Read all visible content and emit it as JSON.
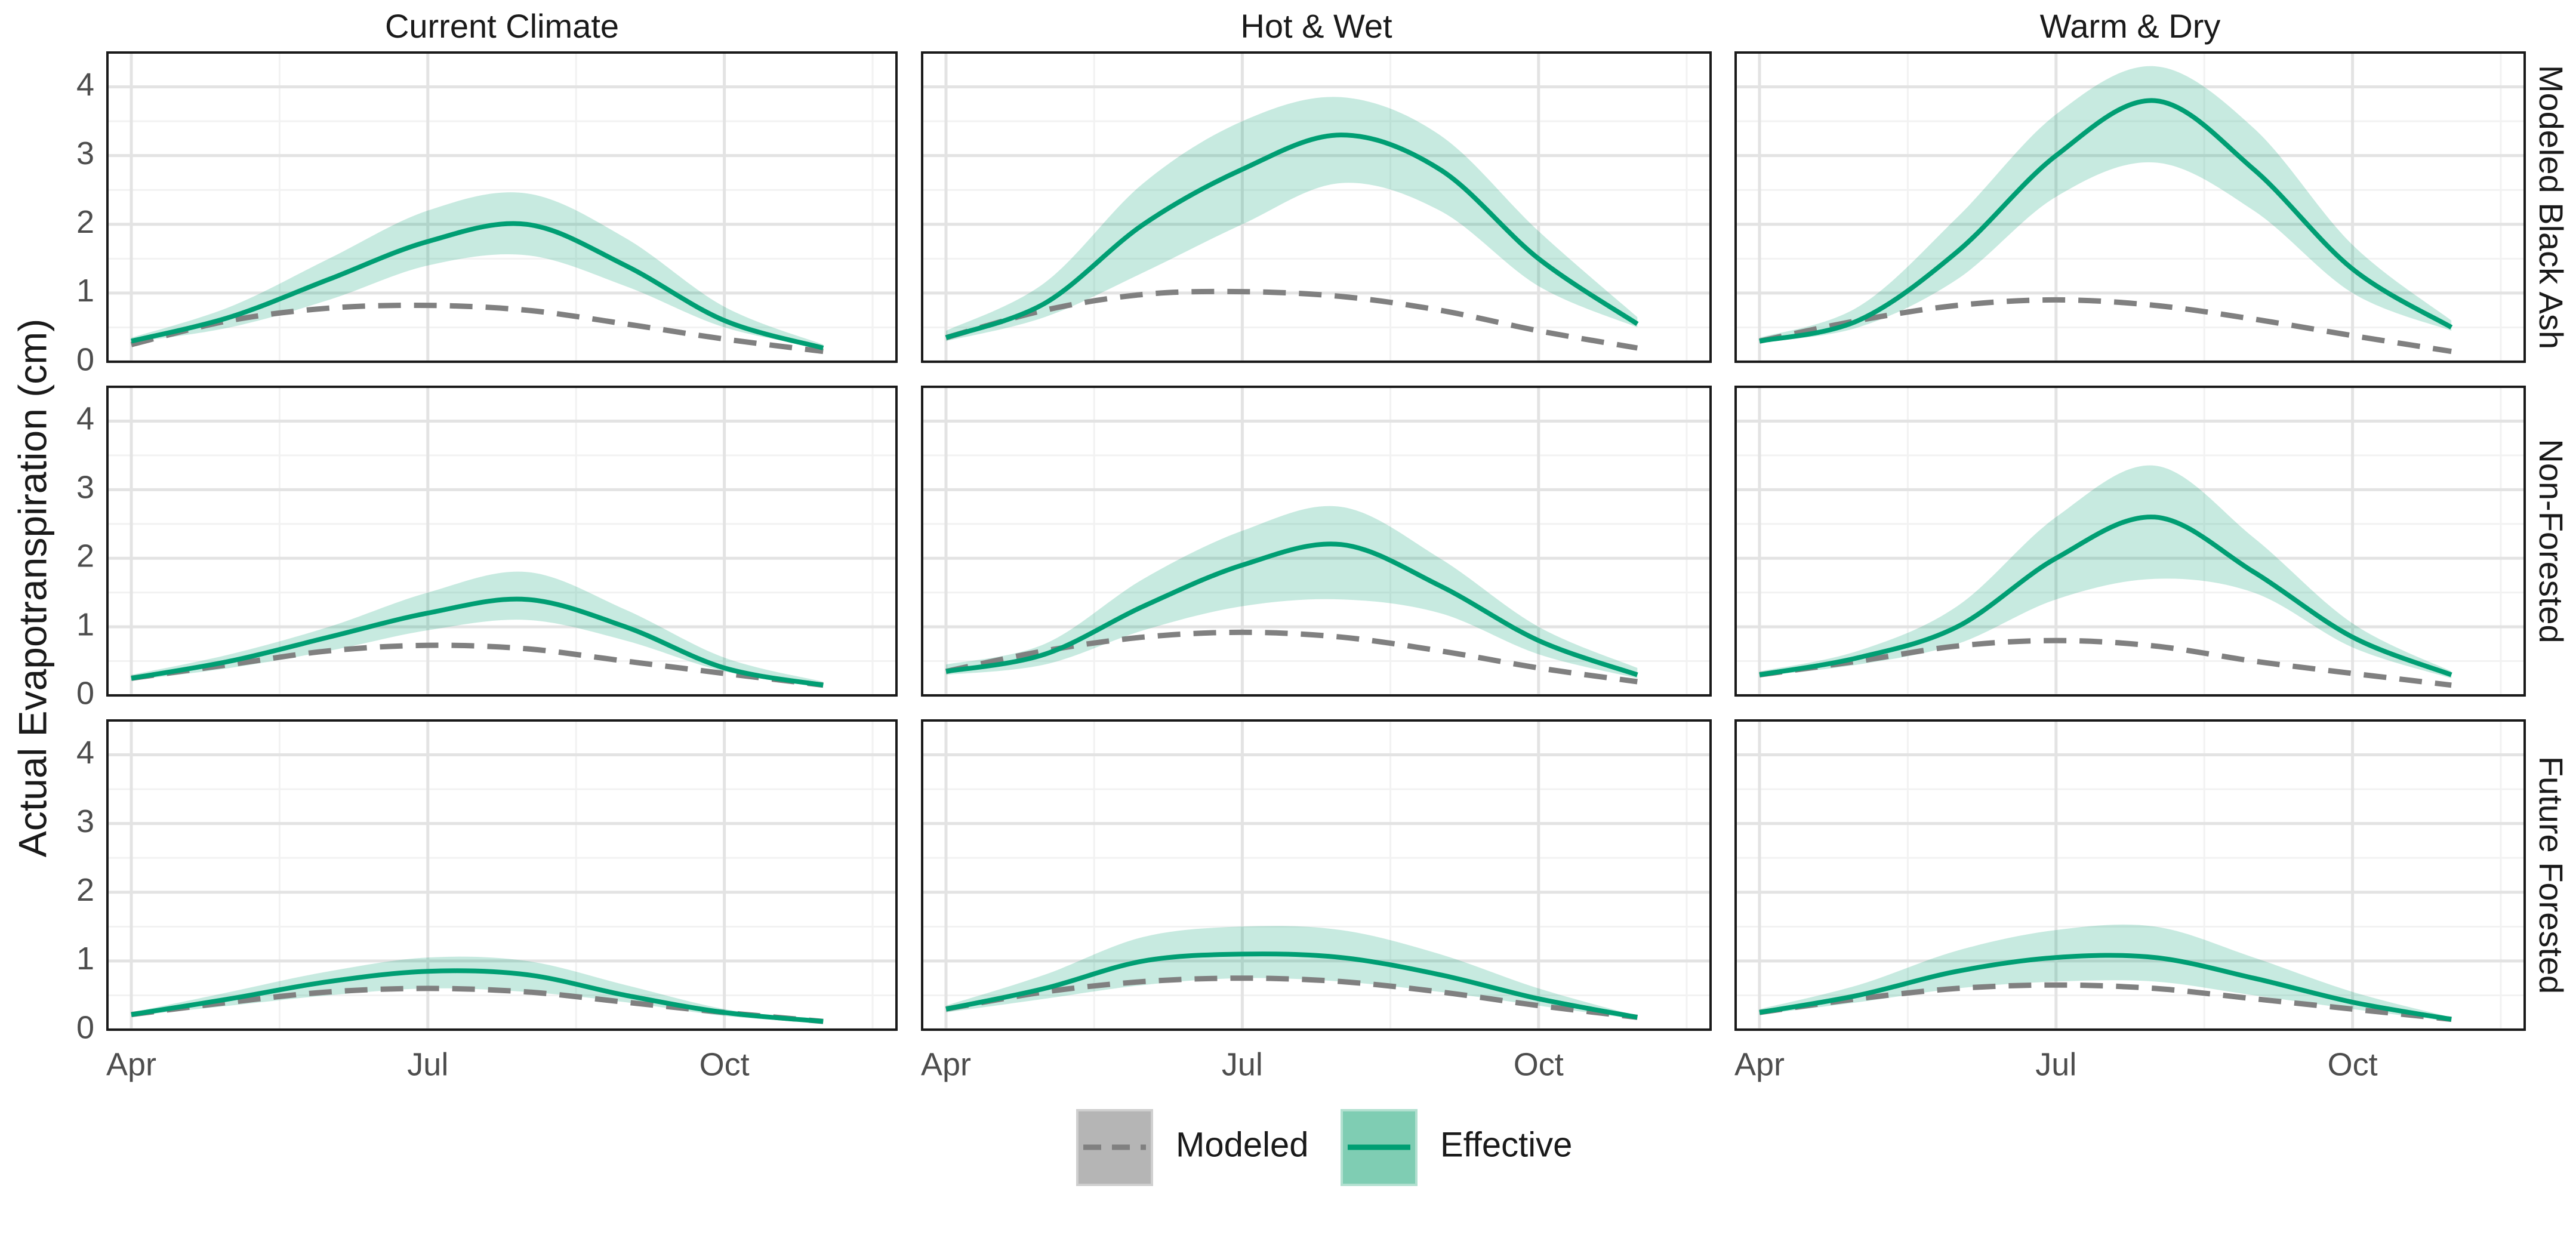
{
  "chart_data": {
    "type": "line",
    "ylabel": "Actual Evapotranspiration (cm)",
    "xlabel": "",
    "ylim": [
      0,
      4.5
    ],
    "y_ticks": [
      0,
      1,
      2,
      3,
      4
    ],
    "x_ticks": [
      "Apr",
      "Jul",
      "Oct"
    ],
    "grid": true,
    "columns": [
      "Current Climate",
      "Hot & Wet",
      "Warm & Dry"
    ],
    "rows": [
      "Modeled Black Ash",
      "Non-Forested",
      "Future Forested"
    ],
    "legend": {
      "position": "bottom",
      "entries": [
        {
          "label": "Modeled",
          "style": "dashed",
          "color": "#808080"
        },
        {
          "label": "Effective",
          "style": "solid",
          "color": "#009E73"
        }
      ]
    },
    "months": [
      4,
      5,
      6,
      7,
      8,
      9,
      10,
      11
    ],
    "panels": [
      {
        "row": "Modeled Black Ash",
        "column": "Current Climate",
        "modeled": [
          0.25,
          0.6,
          0.78,
          0.82,
          0.75,
          0.55,
          0.33,
          0.15
        ],
        "effective": [
          0.3,
          0.65,
          1.2,
          1.75,
          2.0,
          1.4,
          0.6,
          0.2
        ],
        "lower": [
          0.28,
          0.5,
          0.9,
          1.4,
          1.55,
          1.1,
          0.5,
          0.2
        ],
        "upper": [
          0.35,
          0.8,
          1.5,
          2.2,
          2.45,
          1.8,
          0.8,
          0.25
        ]
      },
      {
        "row": "Modeled Black Ash",
        "column": "Hot & Wet",
        "modeled": [
          0.35,
          0.75,
          0.98,
          1.02,
          0.95,
          0.75,
          0.45,
          0.2
        ],
        "effective": [
          0.35,
          0.85,
          2.0,
          2.8,
          3.3,
          2.8,
          1.5,
          0.55
        ],
        "lower": [
          0.3,
          0.65,
          1.3,
          2.0,
          2.6,
          2.2,
          1.1,
          0.5
        ],
        "upper": [
          0.45,
          1.15,
          2.6,
          3.5,
          3.85,
          3.3,
          1.9,
          0.65
        ]
      },
      {
        "row": "Modeled Black Ash",
        "column": "Warm & Dry",
        "modeled": [
          0.3,
          0.6,
          0.82,
          0.9,
          0.82,
          0.62,
          0.38,
          0.15
        ],
        "effective": [
          0.3,
          0.6,
          1.6,
          3.0,
          3.8,
          2.8,
          1.35,
          0.5
        ],
        "lower": [
          0.28,
          0.5,
          1.2,
          2.4,
          2.9,
          2.2,
          1.0,
          0.45
        ],
        "upper": [
          0.35,
          0.8,
          2.1,
          3.6,
          4.3,
          3.4,
          1.7,
          0.6
        ]
      },
      {
        "row": "Non-Forested",
        "column": "Current Climate",
        "modeled": [
          0.25,
          0.45,
          0.65,
          0.73,
          0.68,
          0.5,
          0.32,
          0.15
        ],
        "effective": [
          0.25,
          0.5,
          0.85,
          1.2,
          1.4,
          1.0,
          0.4,
          0.15
        ],
        "lower": [
          0.22,
          0.4,
          0.65,
          0.95,
          1.1,
          0.8,
          0.35,
          0.15
        ],
        "upper": [
          0.3,
          0.6,
          1.0,
          1.5,
          1.8,
          1.25,
          0.55,
          0.2
        ]
      },
      {
        "row": "Non-Forested",
        "column": "Hot & Wet",
        "modeled": [
          0.35,
          0.65,
          0.85,
          0.92,
          0.85,
          0.65,
          0.4,
          0.2
        ],
        "effective": [
          0.35,
          0.6,
          1.3,
          1.9,
          2.2,
          1.6,
          0.8,
          0.3
        ],
        "lower": [
          0.3,
          0.45,
          0.95,
          1.3,
          1.4,
          1.2,
          0.6,
          0.25
        ],
        "upper": [
          0.45,
          0.75,
          1.7,
          2.4,
          2.75,
          2.0,
          1.0,
          0.4
        ]
      },
      {
        "row": "Non-Forested",
        "column": "Warm & Dry",
        "modeled": [
          0.3,
          0.5,
          0.72,
          0.8,
          0.72,
          0.5,
          0.32,
          0.15
        ],
        "effective": [
          0.3,
          0.55,
          1.0,
          2.0,
          2.6,
          1.8,
          0.85,
          0.3
        ],
        "lower": [
          0.28,
          0.45,
          0.75,
          1.4,
          1.7,
          1.5,
          0.7,
          0.25
        ],
        "upper": [
          0.35,
          0.65,
          1.3,
          2.6,
          3.35,
          2.3,
          1.05,
          0.35
        ]
      },
      {
        "row": "Future Forested",
        "column": "Current Climate",
        "modeled": [
          0.22,
          0.4,
          0.55,
          0.6,
          0.55,
          0.4,
          0.25,
          0.12
        ],
        "effective": [
          0.22,
          0.45,
          0.7,
          0.85,
          0.8,
          0.5,
          0.25,
          0.12
        ],
        "lower": [
          0.2,
          0.35,
          0.5,
          0.6,
          0.55,
          0.4,
          0.2,
          0.1
        ],
        "upper": [
          0.25,
          0.55,
          0.85,
          1.05,
          1.0,
          0.65,
          0.3,
          0.12
        ]
      },
      {
        "row": "Future Forested",
        "column": "Hot & Wet",
        "modeled": [
          0.3,
          0.55,
          0.7,
          0.75,
          0.7,
          0.55,
          0.35,
          0.18
        ],
        "effective": [
          0.3,
          0.6,
          1.0,
          1.1,
          1.05,
          0.8,
          0.45,
          0.18
        ],
        "lower": [
          0.25,
          0.45,
          0.65,
          0.75,
          0.7,
          0.55,
          0.35,
          0.15
        ],
        "upper": [
          0.35,
          0.8,
          1.35,
          1.5,
          1.45,
          1.1,
          0.6,
          0.2
        ]
      },
      {
        "row": "Future Forested",
        "column": "Warm & Dry",
        "modeled": [
          0.25,
          0.45,
          0.6,
          0.65,
          0.6,
          0.45,
          0.3,
          0.15
        ],
        "effective": [
          0.25,
          0.5,
          0.85,
          1.05,
          1.05,
          0.75,
          0.4,
          0.15
        ],
        "lower": [
          0.22,
          0.4,
          0.6,
          0.7,
          0.7,
          0.5,
          0.3,
          0.12
        ],
        "upper": [
          0.3,
          0.65,
          1.15,
          1.45,
          1.5,
          1.05,
          0.55,
          0.18
        ]
      }
    ]
  }
}
